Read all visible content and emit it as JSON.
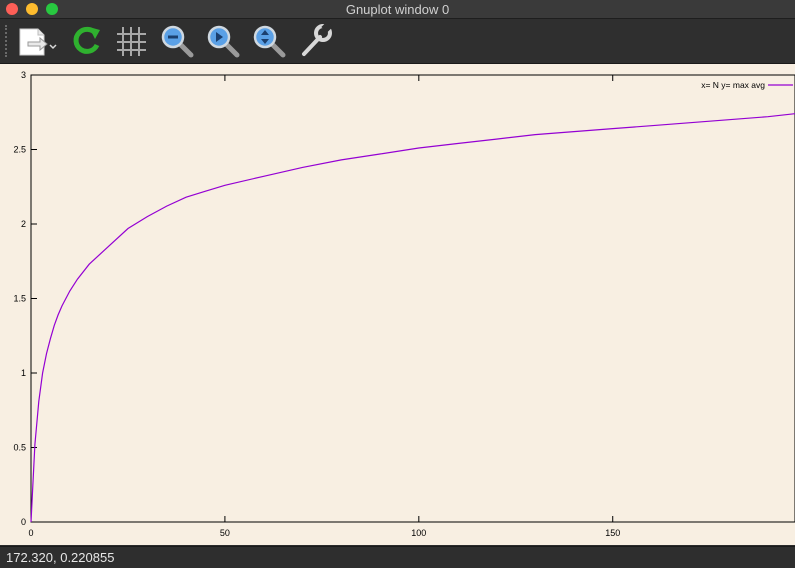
{
  "window": {
    "title": "Gnuplot window 0"
  },
  "toolbar": {
    "buttons": [
      {
        "name": "export-button",
        "icon": "export-document-icon"
      },
      {
        "name": "replot-button",
        "icon": "refresh-icon"
      },
      {
        "name": "grid-button",
        "icon": "grid-icon"
      },
      {
        "name": "zoom-previous-button",
        "icon": "zoom-previous-icon"
      },
      {
        "name": "zoom-next-button",
        "icon": "zoom-next-icon"
      },
      {
        "name": "autoscale-button",
        "icon": "zoom-autoscale-icon"
      },
      {
        "name": "settings-button",
        "icon": "wrench-icon"
      }
    ]
  },
  "colors": {
    "series": "#9400d3",
    "plot_background": "#f8efe2"
  },
  "status": {
    "coords": "172.320,  0.220855"
  },
  "chart_data": {
    "type": "line",
    "title": "",
    "xlabel": "",
    "ylabel": "",
    "xlim": [
      0,
      197
    ],
    "ylim": [
      0,
      3
    ],
    "xticks": [
      0,
      50,
      100,
      150
    ],
    "yticks": [
      0,
      0.5,
      1,
      1.5,
      2,
      2.5,
      3
    ],
    "xtick_labels": [
      "0",
      "50",
      "100",
      "150"
    ],
    "ytick_labels": [
      "0",
      "0.5",
      "1",
      "1.5",
      "2",
      "2.5",
      "3"
    ],
    "grid": false,
    "legend": {
      "position": "top-right",
      "label": "x= N  y= max avg"
    },
    "series": [
      {
        "name": "x= N  y= max avg",
        "x": [
          0,
          1,
          2,
          3,
          4,
          5,
          6,
          7,
          8,
          10,
          12,
          15,
          20,
          25,
          30,
          35,
          40,
          45,
          50,
          60,
          70,
          80,
          90,
          100,
          110,
          120,
          130,
          140,
          150,
          160,
          170,
          180,
          190,
          197
        ],
        "y": [
          0.0,
          0.52,
          0.81,
          1.0,
          1.13,
          1.23,
          1.32,
          1.39,
          1.45,
          1.55,
          1.63,
          1.73,
          1.85,
          1.97,
          2.05,
          2.12,
          2.18,
          2.22,
          2.26,
          2.32,
          2.38,
          2.43,
          2.47,
          2.51,
          2.54,
          2.57,
          2.6,
          2.62,
          2.64,
          2.66,
          2.68,
          2.7,
          2.72,
          2.74
        ]
      }
    ]
  }
}
